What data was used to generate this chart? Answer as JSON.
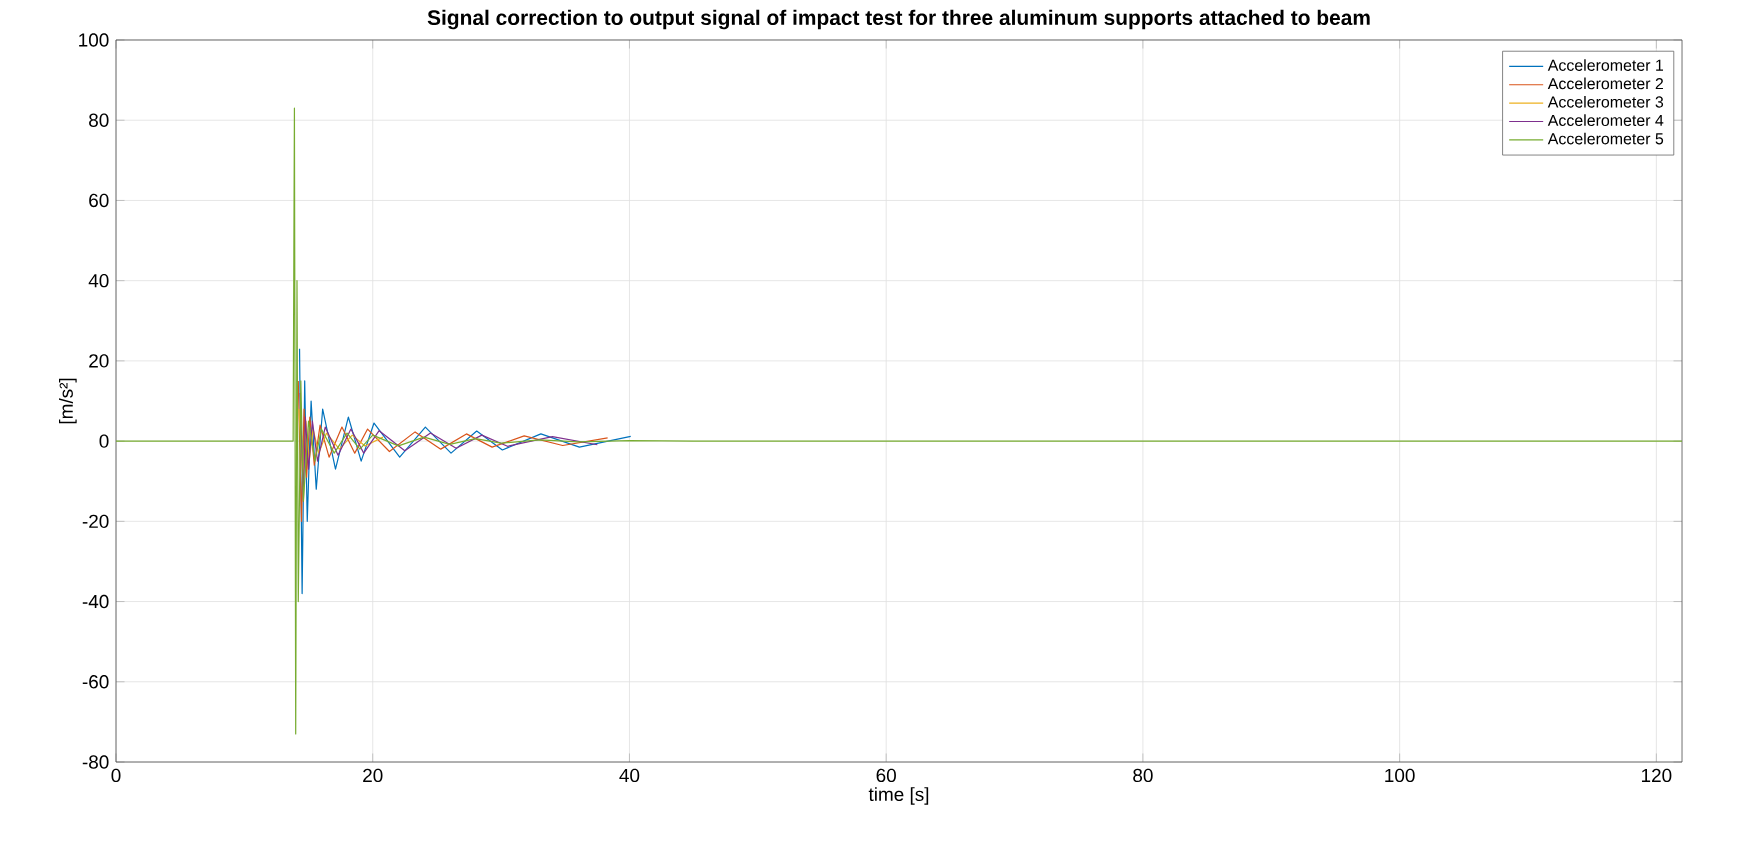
{
  "chart_data": {
    "type": "line",
    "title": "Signal correction to output signal of impact test for three aluminum supports attached to beam",
    "xlabel": "time [s]",
    "ylabel": "[m/s²]",
    "x": [
      0,
      13.8,
      13.9,
      14.0,
      14.1,
      14.2,
      14.4,
      14.6,
      15,
      15.5,
      16,
      17,
      18,
      19,
      20,
      22,
      24,
      26,
      28,
      30,
      33,
      36,
      40,
      45,
      50,
      60,
      122
    ],
    "series": [
      {
        "name": "Accelerometer 1",
        "color": "#0072bd",
        "x": [
          14.3,
          14.5,
          14.7,
          14.9,
          15.2,
          15.6,
          16.1,
          17.1,
          18.1,
          19.1,
          20.1,
          22.1,
          24.1,
          26.1,
          28.1,
          30.1,
          33.1,
          36.1,
          40.1
        ],
        "values": [
          23,
          -38,
          15,
          -20,
          10,
          -12,
          8,
          -7,
          6,
          -5,
          4.5,
          -4,
          3.5,
          -3,
          2.5,
          -2.2,
          1.8,
          -1.5,
          1.2
        ]
      },
      {
        "name": "Accelerometer 2",
        "color": "#d95319",
        "x": [
          14.2,
          14.45,
          14.65,
          14.85,
          15.1,
          15.45,
          15.9,
          16.6,
          17.6,
          18.6,
          19.6,
          21.3,
          23.3,
          25.3,
          27.3,
          29.3,
          31.8,
          34.8,
          38.3
        ],
        "values": [
          15,
          -20,
          8,
          -9,
          6,
          -6,
          4,
          -4,
          3.5,
          -3,
          3,
          -2.6,
          2.3,
          -2,
          1.8,
          -1.5,
          1.3,
          -1.1,
          0.8
        ]
      },
      {
        "name": "Accelerometer 3",
        "color": "#edb120",
        "x": [
          14.25,
          14.55,
          14.8,
          15.05,
          15.35,
          15.8,
          16.4,
          17.4,
          18.4,
          19.4,
          20.8
        ],
        "values": [
          8,
          -10,
          5,
          -5,
          3,
          -3,
          2,
          -2,
          1.5,
          -1.2,
          1
        ]
      },
      {
        "name": "Accelerometer 4",
        "color": "#7e2f8e",
        "x": [
          14.35,
          14.6,
          14.75,
          15.0,
          15.3,
          15.7,
          16.3,
          17.3,
          18.3,
          19.3,
          20.5,
          22.5,
          24.5,
          26.5,
          28.5,
          30.5,
          34,
          37.5
        ],
        "values": [
          12,
          -15,
          6,
          -7,
          5,
          -5,
          3.5,
          -3.5,
          3,
          -3,
          2.6,
          -2.4,
          2,
          -1.8,
          1.5,
          -1.3,
          1.1,
          -0.9
        ]
      },
      {
        "name": "Accelerometer 5",
        "color": "#77ac30",
        "values": [
          0,
          0,
          83,
          -73,
          40,
          -40,
          15,
          -15,
          5,
          -5,
          3,
          -3,
          2,
          -2,
          1.5,
          -1.2,
          1,
          -0.8,
          0.6,
          -0.5,
          0.3,
          -0.2,
          0.1,
          0,
          0,
          0,
          0
        ]
      }
    ],
    "xlim": [
      0,
      122
    ],
    "ylim": [
      -80,
      100
    ],
    "xticks": [
      0,
      20,
      40,
      60,
      80,
      100,
      120
    ],
    "yticks": [
      -80,
      -60,
      -40,
      -20,
      0,
      20,
      40,
      60,
      80,
      100
    ],
    "grid": true,
    "legend": "top right",
    "line_style": "solid",
    "marker": "none"
  }
}
